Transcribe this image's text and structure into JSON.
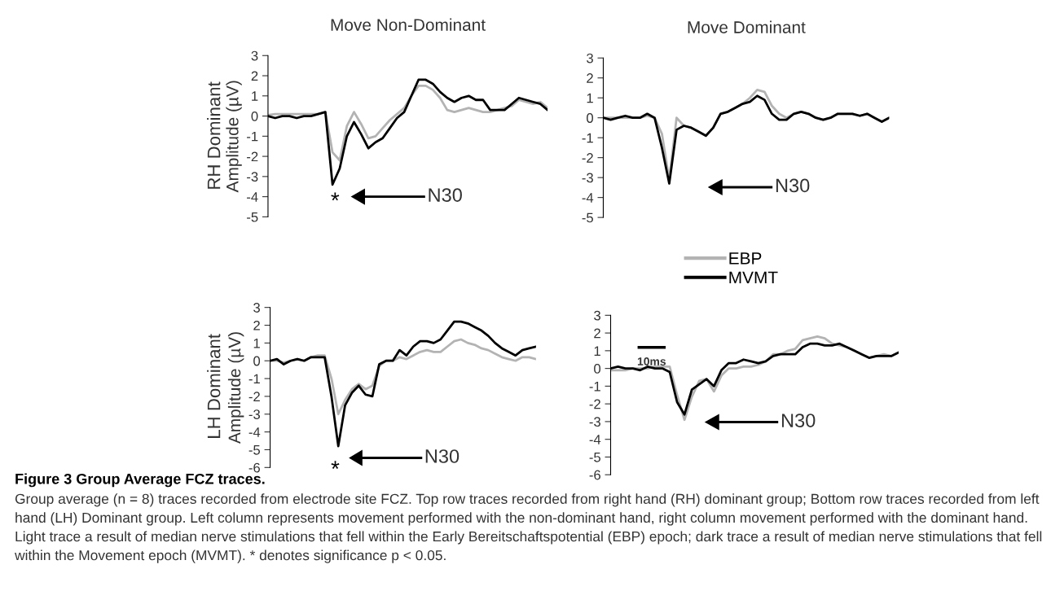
{
  "chart_data": [
    {
      "type": "line",
      "title": "Move Non-Dominant",
      "ylabel": "Amplitude (µV)",
      "categories": [
        null,
        null,
        null,
        null,
        null,
        null,
        null,
        null,
        null,
        null,
        null,
        null,
        null,
        null,
        null,
        null,
        null,
        null,
        null,
        null,
        null,
        null,
        null,
        null,
        null,
        null,
        null,
        null,
        null,
        null,
        null,
        null,
        null,
        null,
        null,
        null,
        null,
        null,
        null,
        null
      ],
      "series": [
        {
          "color": "#b3b3b3",
          "values": [
            0.05,
            0.1,
            0.1,
            0.1,
            0.1,
            0.1,
            0.1,
            0.1,
            0.2,
            -1.8,
            -2.2,
            -0.5,
            0.2,
            -0.4,
            -1.1,
            -1.0,
            -0.6,
            -0.2,
            0.1,
            0.4,
            1.0,
            1.5,
            1.5,
            1.3,
            0.9,
            0.3,
            0.2,
            0.3,
            0.4,
            0.3,
            0.2,
            0.2,
            0.3,
            0.4,
            0.5,
            0.8,
            0.7,
            0.6,
            0.7,
            0.4
          ]
        },
        {
          "color": "#000000",
          "values": [
            0,
            -0.1,
            0,
            0,
            -0.1,
            0,
            0,
            0.1,
            0.2,
            -3.4,
            -2.6,
            -1.0,
            -0.3,
            -0.9,
            -1.6,
            -1.3,
            -1.1,
            -0.6,
            -0.1,
            0.2,
            1.0,
            1.8,
            1.8,
            1.6,
            1.2,
            0.9,
            0.7,
            0.9,
            1.0,
            0.8,
            0.8,
            0.3,
            0.3,
            0.3,
            0.6,
            0.9,
            0.8,
            0.7,
            0.6,
            0.3
          ]
        }
      ],
      "ylim": [
        -5,
        3
      ],
      "yticks": [
        -5,
        -4,
        -3,
        -2,
        -1,
        0,
        1,
        2,
        3
      ],
      "annotations": [
        "N30",
        "*",
        "RH Dominant"
      ]
    },
    {
      "type": "line",
      "title": "Move Dominant",
      "categories": [
        null,
        null,
        null,
        null,
        null,
        null,
        null,
        null,
        null,
        null,
        null,
        null,
        null,
        null,
        null,
        null,
        null,
        null,
        null,
        null,
        null,
        null,
        null,
        null,
        null,
        null,
        null,
        null,
        null,
        null,
        null,
        null,
        null,
        null,
        null,
        null,
        null,
        null,
        null,
        null
      ],
      "series": [
        {
          "name": "EBP",
          "color": "#b3b3b3",
          "values": [
            0,
            0,
            0,
            0,
            0,
            0,
            0.1,
            0,
            -0.8,
            -3.1,
            0.0,
            -0.4,
            -0.5,
            -0.7,
            -0.9,
            -0.5,
            0.2,
            0.3,
            0.5,
            0.7,
            1.0,
            1.4,
            1.3,
            0.6,
            0.2,
            0.0,
            0.2,
            0.3,
            0.2,
            0,
            -0.1,
            0,
            0.2,
            0.2,
            0.2,
            0.1,
            0.2,
            0,
            -0.2,
            0
          ]
        },
        {
          "name": "MVMT",
          "color": "#000000",
          "values": [
            0,
            -0.1,
            0,
            0.1,
            0,
            0,
            0.2,
            0,
            -1.5,
            -3.3,
            -0.6,
            -0.4,
            -0.5,
            -0.7,
            -0.9,
            -0.5,
            0.2,
            0.3,
            0.5,
            0.7,
            0.8,
            1.1,
            0.9,
            0.2,
            -0.1,
            -0.1,
            0.2,
            0.3,
            0.2,
            0,
            -0.1,
            0,
            0.2,
            0.2,
            0.2,
            0.1,
            0.2,
            0,
            -0.2,
            0
          ]
        }
      ],
      "ylim": [
        -5,
        3
      ],
      "yticks": [
        -5,
        -4,
        -3,
        -2,
        -1,
        0,
        1,
        2,
        3
      ],
      "legend": "bottom",
      "annotations": [
        "N30"
      ]
    },
    {
      "type": "line",
      "ylabel": "Amplitude (µV)",
      "categories": [
        null,
        null,
        null,
        null,
        null,
        null,
        null,
        null,
        null,
        null,
        null,
        null,
        null,
        null,
        null,
        null,
        null,
        null,
        null,
        null,
        null,
        null,
        null,
        null,
        null,
        null,
        null,
        null,
        null,
        null,
        null,
        null,
        null,
        null,
        null,
        null,
        null,
        null,
        null,
        null
      ],
      "series": [
        {
          "color": "#b3b3b3",
          "values": [
            0,
            0,
            -0.1,
            0,
            0.1,
            0,
            0.2,
            0.3,
            0.3,
            -1.0,
            -3.0,
            -2.2,
            -1.6,
            -1.3,
            -1.6,
            -1.4,
            -0.3,
            0,
            0,
            0.2,
            0.1,
            0.3,
            0.5,
            0.6,
            0.5,
            0.5,
            0.8,
            1.1,
            1.2,
            1.0,
            0.9,
            0.7,
            0.6,
            0.4,
            0.2,
            0.1,
            0,
            0.2,
            0.2,
            0.1
          ]
        },
        {
          "color": "#000000",
          "values": [
            0,
            0.1,
            -0.2,
            0,
            0.1,
            0,
            0.2,
            0.2,
            0.2,
            -2.0,
            -4.8,
            -2.5,
            -1.8,
            -1.4,
            -1.9,
            -2.0,
            -0.2,
            0,
            0,
            0.6,
            0.3,
            0.8,
            1.1,
            1.1,
            1.0,
            1.2,
            1.7,
            2.2,
            2.2,
            2.1,
            1.9,
            1.7,
            1.4,
            1.0,
            0.7,
            0.5,
            0.3,
            0.6,
            0.7,
            0.8
          ]
        }
      ],
      "ylim": [
        -6,
        3
      ],
      "yticks": [
        -6,
        -5,
        -4,
        -3,
        -2,
        -1,
        0,
        1,
        2,
        3
      ],
      "annotations": [
        "N30",
        "*",
        "LH Dominant",
        "10ms"
      ]
    },
    {
      "type": "line",
      "categories": [
        null,
        null,
        null,
        null,
        null,
        null,
        null,
        null,
        null,
        null,
        null,
        null,
        null,
        null,
        null,
        null,
        null,
        null,
        null,
        null,
        null,
        null,
        null,
        null,
        null,
        null,
        null,
        null,
        null,
        null,
        null,
        null,
        null,
        null,
        null,
        null,
        null,
        null,
        null,
        null
      ],
      "series": [
        {
          "color": "#b3b3b3",
          "values": [
            -0.1,
            -0.1,
            -0.1,
            0,
            0,
            0,
            0.1,
            0.1,
            0.1,
            -1.5,
            -2.9,
            -1.6,
            -0.7,
            -0.6,
            -1.3,
            -0.4,
            0,
            0,
            0.1,
            0.1,
            0.2,
            0.4,
            0.8,
            0.8,
            1.0,
            1.1,
            1.6,
            1.7,
            1.8,
            1.7,
            1.4,
            1.3,
            1.2,
            1.0,
            0.8,
            0.6,
            0.7,
            0.8,
            0.7,
            0.9
          ]
        },
        {
          "color": "#000000",
          "values": [
            0,
            0.1,
            0,
            0,
            -0.1,
            0.1,
            0,
            0,
            -0.2,
            -1.9,
            -2.6,
            -1.2,
            -0.9,
            -0.6,
            -1.0,
            -0.1,
            0.3,
            0.3,
            0.5,
            0.4,
            0.3,
            0.4,
            0.7,
            0.8,
            0.8,
            0.8,
            1.2,
            1.4,
            1.4,
            1.3,
            1.3,
            1.4,
            1.2,
            1.0,
            0.8,
            0.6,
            0.7,
            0.7,
            0.7,
            0.9
          ]
        }
      ],
      "ylim": [
        -6,
        3
      ],
      "yticks": [
        -6,
        -5,
        -4,
        -3,
        -2,
        -1,
        0,
        1,
        2,
        3
      ],
      "annotations": [
        "N30",
        "Figure 3 Group Average FCZ traces.",
        "Group average (n = 8) traces recorded from electrode site FCZ. Top row traces recorded from right hand (RH) dominant group; Bottom row traces recorded from left hand (LH) Dominant group. Left column represents movement performed with the non-dominant hand, right column movement performed with the dominant hand. Light trace a result of median nerve stimulations that fell within the Early Bereitschaftspotential (EBP) epoch; dark trace a result of median nerve stimulations that fell within the Movement epoch (MVMT). * denotes significance p < 0.05."
      ]
    }
  ]
}
